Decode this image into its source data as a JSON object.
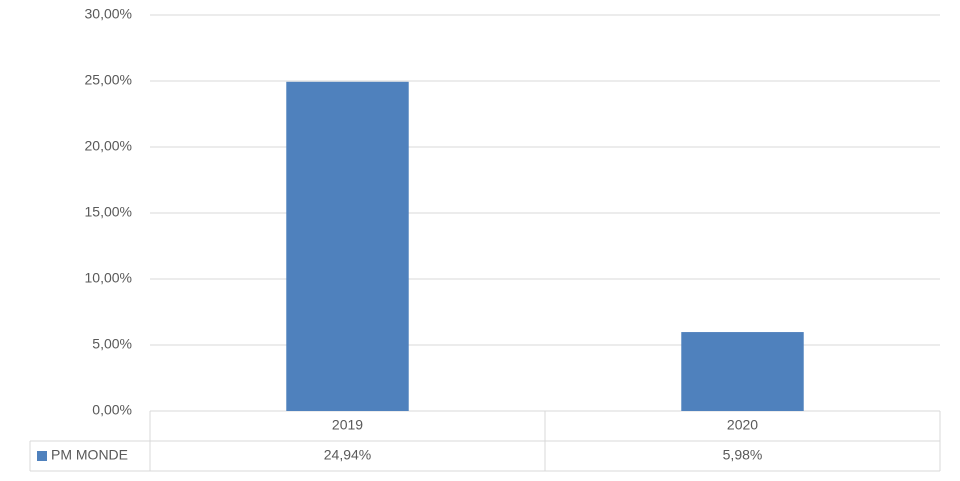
{
  "chart_data": {
    "type": "bar",
    "categories": [
      "2019",
      "2020"
    ],
    "series": [
      {
        "name": "PM MONDE",
        "color": "#4f81bd",
        "values": [
          24.94,
          5.98
        ],
        "value_labels": [
          "24,94%",
          "5,98%"
        ]
      }
    ],
    "ylim": [
      0,
      30
    ],
    "yticks": [
      {
        "value": 0,
        "label": "0,00%"
      },
      {
        "value": 5,
        "label": "5,00%"
      },
      {
        "value": 10,
        "label": "10,00%"
      },
      {
        "value": 15,
        "label": "15,00%"
      },
      {
        "value": 20,
        "label": "20,00%"
      },
      {
        "value": 25,
        "label": "25,00%"
      },
      {
        "value": 30,
        "label": "30,00%"
      }
    ],
    "grid": true
  }
}
